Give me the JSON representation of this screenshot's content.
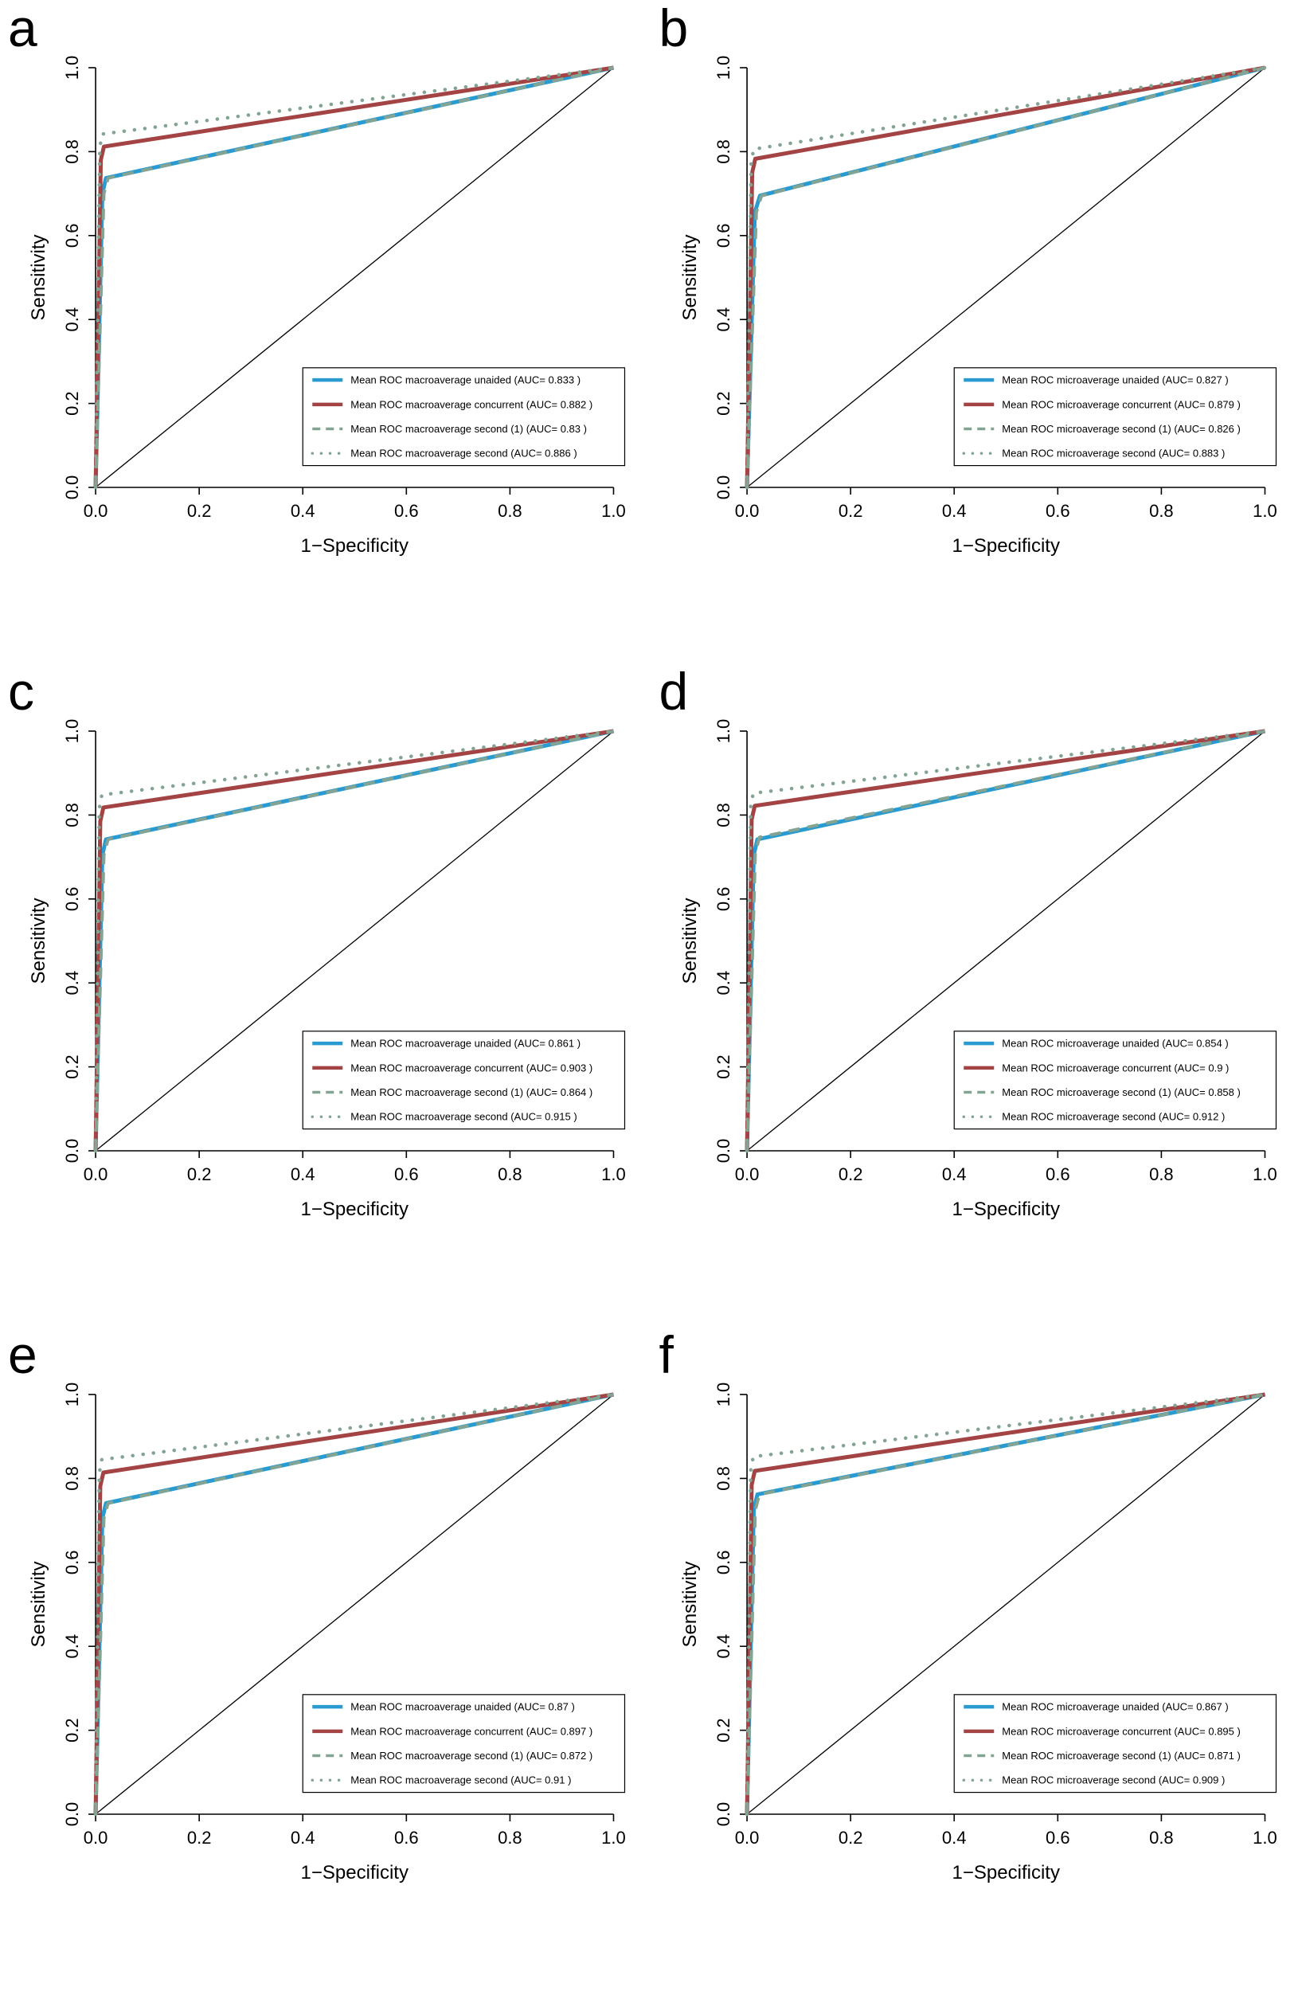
{
  "colors": {
    "unaided": "#2a9bd0",
    "concurrent": "#a34343",
    "second": "#84a493",
    "axis": "#000000",
    "diagonal": "#000000",
    "background": "#ffffff"
  },
  "chart_data": [
    {
      "type": "line",
      "panel": "a",
      "xlabel": "1−Specificity",
      "ylabel": "Sensitivity",
      "xlim": [
        0,
        1
      ],
      "ylim": [
        0,
        1
      ],
      "grid": false,
      "diagonal_reference_line": true,
      "legend_position": "bottom-right",
      "tick_values": [
        0,
        0.2,
        0.4,
        0.6,
        0.8,
        1.0
      ],
      "tick_labels": [
        "0.0",
        "0.2",
        "0.4",
        "0.6",
        "0.8",
        "1.0"
      ],
      "series": [
        {
          "label": "Mean ROC macroaverage unaided",
          "auc": 0.833,
          "auc_label": "(AUC= 0.833 )",
          "color": "#2a9bd0",
          "style": "solid",
          "points": [
            [
              0,
              0
            ],
            [
              0.013,
              0.7
            ],
            [
              0.02,
              0.737
            ],
            [
              1,
              1
            ]
          ]
        },
        {
          "label": "Mean ROC macroaverage concurrent",
          "auc": 0.882,
          "auc_label": "(AUC= 0.882 )",
          "color": "#a34343",
          "style": "solid",
          "points": [
            [
              0,
              0
            ],
            [
              0.01,
              0.78
            ],
            [
              0.016,
              0.812
            ],
            [
              1,
              1
            ]
          ]
        },
        {
          "label": "Mean ROC macroaverage second (1)",
          "auc": 0.83,
          "auc_label": "(AUC= 0.83 )",
          "color": "#84a493",
          "style": "dashed",
          "points": [
            [
              0,
              0
            ],
            [
              0.016,
              0.7
            ],
            [
              0.024,
              0.737
            ],
            [
              1,
              1
            ]
          ]
        },
        {
          "label": "Mean ROC macroaverage second",
          "auc": 0.886,
          "auc_label": "(AUC= 0.886 )",
          "color": "#84a493",
          "style": "dotted",
          "points": [
            [
              0,
              0
            ],
            [
              0.008,
              0.81
            ],
            [
              0.013,
              0.842
            ],
            [
              1,
              1
            ]
          ]
        }
      ]
    },
    {
      "type": "line",
      "panel": "b",
      "xlabel": "1−Specificity",
      "ylabel": "Sensitivity",
      "xlim": [
        0,
        1
      ],
      "ylim": [
        0,
        1
      ],
      "grid": false,
      "diagonal_reference_line": true,
      "legend_position": "bottom-right",
      "tick_values": [
        0,
        0.2,
        0.4,
        0.6,
        0.8,
        1.0
      ],
      "tick_labels": [
        "0.0",
        "0.2",
        "0.4",
        "0.6",
        "0.8",
        "1.0"
      ],
      "series": [
        {
          "label": "Mean ROC microaverage unaided",
          "auc": 0.827,
          "auc_label": "(AUC= 0.827 )",
          "color": "#2a9bd0",
          "style": "solid",
          "points": [
            [
              0,
              0
            ],
            [
              0.015,
              0.655
            ],
            [
              0.025,
              0.695
            ],
            [
              1,
              1
            ]
          ]
        },
        {
          "label": "Mean ROC microaverage concurrent",
          "auc": 0.879,
          "auc_label": "(AUC= 0.879 )",
          "color": "#a34343",
          "style": "solid",
          "points": [
            [
              0,
              0
            ],
            [
              0.01,
              0.75
            ],
            [
              0.016,
              0.783
            ],
            [
              1,
              1
            ]
          ]
        },
        {
          "label": "Mean ROC microaverage second (1)",
          "auc": 0.826,
          "auc_label": "(AUC= 0.826 )",
          "color": "#84a493",
          "style": "dashed",
          "points": [
            [
              0,
              0
            ],
            [
              0.018,
              0.655
            ],
            [
              0.028,
              0.695
            ],
            [
              1,
              1
            ]
          ]
        },
        {
          "label": "Mean ROC microaverage second",
          "auc": 0.883,
          "auc_label": "(AUC= 0.883 )",
          "color": "#84a493",
          "style": "dotted",
          "points": [
            [
              0,
              0
            ],
            [
              0.008,
              0.775
            ],
            [
              0.013,
              0.806
            ],
            [
              1,
              1
            ]
          ]
        }
      ]
    },
    {
      "type": "line",
      "panel": "c",
      "xlabel": "1−Specificity",
      "ylabel": "Sensitivity",
      "xlim": [
        0,
        1
      ],
      "ylim": [
        0,
        1
      ],
      "grid": false,
      "diagonal_reference_line": true,
      "legend_position": "bottom-right",
      "tick_values": [
        0,
        0.2,
        0.4,
        0.6,
        0.8,
        1.0
      ],
      "tick_labels": [
        "0.0",
        "0.2",
        "0.4",
        "0.6",
        "0.8",
        "1.0"
      ],
      "series": [
        {
          "label": "Mean ROC macroaverage unaided",
          "auc": 0.861,
          "auc_label": "(AUC= 0.861 )",
          "color": "#2a9bd0",
          "style": "solid",
          "points": [
            [
              0,
              0
            ],
            [
              0.013,
              0.705
            ],
            [
              0.02,
              0.742
            ],
            [
              1,
              1
            ]
          ]
        },
        {
          "label": "Mean ROC macroaverage concurrent",
          "auc": 0.903,
          "auc_label": "(AUC= 0.903 )",
          "color": "#a34343",
          "style": "solid",
          "points": [
            [
              0,
              0
            ],
            [
              0.009,
              0.785
            ],
            [
              0.015,
              0.818
            ],
            [
              1,
              1
            ]
          ]
        },
        {
          "label": "Mean ROC macroaverage second (1)",
          "auc": 0.864,
          "auc_label": "(AUC= 0.864 )",
          "color": "#84a493",
          "style": "dashed",
          "points": [
            [
              0,
              0
            ],
            [
              0.016,
              0.705
            ],
            [
              0.024,
              0.742
            ],
            [
              1,
              1
            ]
          ]
        },
        {
          "label": "Mean ROC macroaverage second",
          "auc": 0.915,
          "auc_label": "(AUC= 0.915 )",
          "color": "#84a493",
          "style": "dotted",
          "points": [
            [
              0,
              0
            ],
            [
              0.007,
              0.815
            ],
            [
              0.012,
              0.848
            ],
            [
              1,
              1
            ]
          ]
        }
      ]
    },
    {
      "type": "line",
      "panel": "d",
      "xlabel": "1−Specificity",
      "ylabel": "Sensitivity",
      "xlim": [
        0,
        1
      ],
      "ylim": [
        0,
        1
      ],
      "grid": false,
      "diagonal_reference_line": true,
      "legend_position": "bottom-right",
      "tick_values": [
        0,
        0.2,
        0.4,
        0.6,
        0.8,
        1.0
      ],
      "tick_labels": [
        "0.0",
        "0.2",
        "0.4",
        "0.6",
        "0.8",
        "1.0"
      ],
      "series": [
        {
          "label": "Mean ROC microaverage unaided",
          "auc": 0.854,
          "auc_label": "(AUC= 0.854 )",
          "color": "#2a9bd0",
          "style": "solid",
          "points": [
            [
              0,
              0
            ],
            [
              0.013,
              0.705
            ],
            [
              0.02,
              0.742
            ],
            [
              1,
              1
            ]
          ]
        },
        {
          "label": "Mean ROC microaverage concurrent",
          "auc": 0.9,
          "auc_label": "(AUC= 0.9 )",
          "color": "#a34343",
          "style": "solid",
          "points": [
            [
              0,
              0
            ],
            [
              0.009,
              0.79
            ],
            [
              0.015,
              0.822
            ],
            [
              1,
              1
            ]
          ]
        },
        {
          "label": "Mean ROC microaverage second (1)",
          "auc": 0.858,
          "auc_label": "(AUC= 0.858 )",
          "color": "#84a493",
          "style": "dashed",
          "points": [
            [
              0,
              0
            ],
            [
              0.016,
              0.71
            ],
            [
              0.024,
              0.747
            ],
            [
              1,
              1
            ]
          ]
        },
        {
          "label": "Mean ROC microaverage second",
          "auc": 0.912,
          "auc_label": "(AUC= 0.912 )",
          "color": "#84a493",
          "style": "dotted",
          "points": [
            [
              0,
              0
            ],
            [
              0.007,
              0.82
            ],
            [
              0.012,
              0.852
            ],
            [
              1,
              1
            ]
          ]
        }
      ]
    },
    {
      "type": "line",
      "panel": "e",
      "xlabel": "1−Specificity",
      "ylabel": "Sensitivity",
      "xlim": [
        0,
        1
      ],
      "ylim": [
        0,
        1
      ],
      "grid": false,
      "diagonal_reference_line": true,
      "legend_position": "bottom-right",
      "tick_values": [
        0,
        0.2,
        0.4,
        0.6,
        0.8,
        1.0
      ],
      "tick_labels": [
        "0.0",
        "0.2",
        "0.4",
        "0.6",
        "0.8",
        "1.0"
      ],
      "series": [
        {
          "label": "Mean ROC macroaverage unaided",
          "auc": 0.87,
          "auc_label": "(AUC= 0.87 )",
          "color": "#2a9bd0",
          "style": "solid",
          "points": [
            [
              0,
              0
            ],
            [
              0.013,
              0.705
            ],
            [
              0.02,
              0.741
            ],
            [
              1,
              1
            ]
          ]
        },
        {
          "label": "Mean ROC macroaverage concurrent",
          "auc": 0.897,
          "auc_label": "(AUC= 0.897 )",
          "color": "#a34343",
          "style": "solid",
          "points": [
            [
              0,
              0
            ],
            [
              0.009,
              0.782
            ],
            [
              0.015,
              0.814
            ],
            [
              1,
              1
            ]
          ]
        },
        {
          "label": "Mean ROC macroaverage second (1)",
          "auc": 0.872,
          "auc_label": "(AUC= 0.872 )",
          "color": "#84a493",
          "style": "dashed",
          "points": [
            [
              0,
              0
            ],
            [
              0.016,
              0.705
            ],
            [
              0.024,
              0.741
            ],
            [
              1,
              1
            ]
          ]
        },
        {
          "label": "Mean ROC macroaverage second",
          "auc": 0.91,
          "auc_label": "(AUC= 0.91 )",
          "color": "#84a493",
          "style": "dotted",
          "points": [
            [
              0,
              0
            ],
            [
              0.007,
              0.812
            ],
            [
              0.012,
              0.845
            ],
            [
              1,
              1
            ]
          ]
        }
      ]
    },
    {
      "type": "line",
      "panel": "f",
      "xlabel": "1−Specificity",
      "ylabel": "Sensitivity",
      "xlim": [
        0,
        1
      ],
      "ylim": [
        0,
        1
      ],
      "grid": false,
      "diagonal_reference_line": true,
      "legend_position": "bottom-right",
      "tick_values": [
        0,
        0.2,
        0.4,
        0.6,
        0.8,
        1.0
      ],
      "tick_labels": [
        "0.0",
        "0.2",
        "0.4",
        "0.6",
        "0.8",
        "1.0"
      ],
      "series": [
        {
          "label": "Mean ROC microaverage unaided",
          "auc": 0.867,
          "auc_label": "(AUC= 0.867 )",
          "color": "#2a9bd0",
          "style": "solid",
          "points": [
            [
              0,
              0
            ],
            [
              0.013,
              0.725
            ],
            [
              0.02,
              0.762
            ],
            [
              1,
              1
            ]
          ]
        },
        {
          "label": "Mean ROC microaverage concurrent",
          "auc": 0.895,
          "auc_label": "(AUC= 0.895 )",
          "color": "#a34343",
          "style": "solid",
          "points": [
            [
              0,
              0
            ],
            [
              0.009,
              0.785
            ],
            [
              0.015,
              0.818
            ],
            [
              1,
              1
            ]
          ]
        },
        {
          "label": "Mean ROC microaverage second (1)",
          "auc": 0.871,
          "auc_label": "(AUC= 0.871 )",
          "color": "#84a493",
          "style": "dashed",
          "points": [
            [
              0,
              0
            ],
            [
              0.016,
              0.725
            ],
            [
              0.024,
              0.762
            ],
            [
              1,
              1
            ]
          ]
        },
        {
          "label": "Mean ROC microaverage second",
          "auc": 0.909,
          "auc_label": "(AUC= 0.909 )",
          "color": "#84a493",
          "style": "dotted",
          "points": [
            [
              0,
              0
            ],
            [
              0.007,
              0.818
            ],
            [
              0.012,
              0.852
            ],
            [
              1,
              1
            ]
          ]
        }
      ]
    }
  ]
}
